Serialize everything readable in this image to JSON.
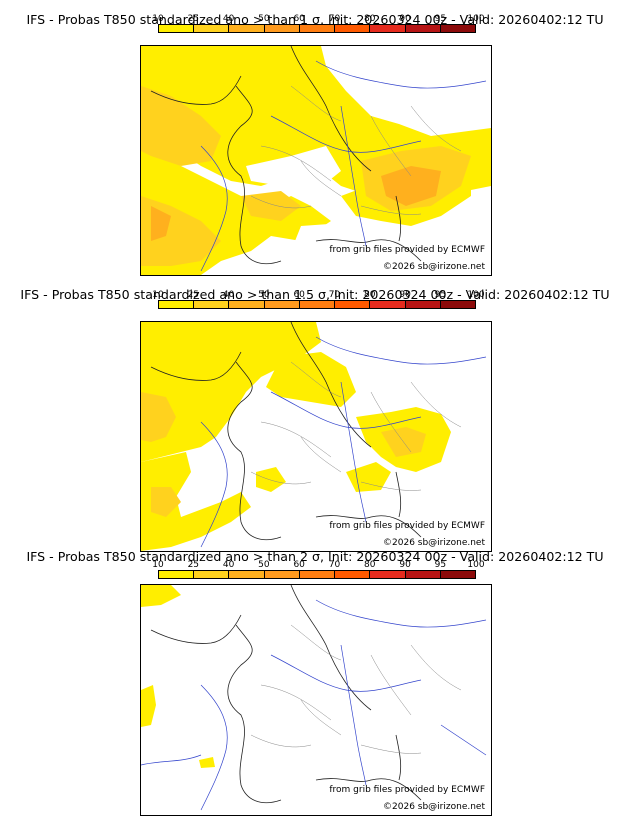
{
  "colorbar": {
    "ticks": [
      "10",
      "25",
      "40",
      "50",
      "60",
      "70",
      "80",
      "90",
      "95",
      "100"
    ],
    "colors": [
      "#ffee00",
      "#ffd21e",
      "#ffb01e",
      "#ff9a1e",
      "#ff7d10",
      "#ff5a00",
      "#e62b1e",
      "#b71414",
      "#8c0a0a",
      "#500000"
    ]
  },
  "panels": [
    {
      "title": "IFS - Probas T850  standardized ano > than 1 σ, Init: 20260324 00z - Valid: 20260402:12 TU",
      "credit_source": "from grib files provided by ECMWF",
      "credit_copyright": "©2026 sb@irizone.net"
    },
    {
      "title": "IFS - Probas T850  standardized ano > than 1.5 σ, Init: 20260324 00z - Valid: 20260402:12 TU",
      "credit_source": "from grib files provided by ECMWF",
      "credit_copyright": "©2026 sb@irizone.net"
    },
    {
      "title": "IFS - Probas T850  standardized ano > than 2 σ, Init: 20260324 00z - Valid: 20260402:12 TU",
      "credit_source": "from grib files provided by ECMWF",
      "credit_copyright": "©2026 sb@irizone.net"
    }
  ]
}
